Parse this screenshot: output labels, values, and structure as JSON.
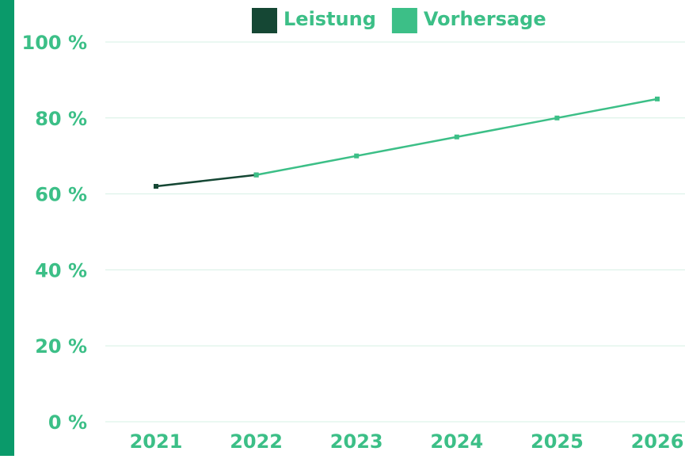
{
  "chart_data": {
    "type": "line",
    "categories": [
      "2021",
      "2022",
      "2023",
      "2024",
      "2025",
      "2026"
    ],
    "series": [
      {
        "name": "Leistung",
        "color": "#154734",
        "values": [
          62,
          65,
          null,
          null,
          null,
          null
        ]
      },
      {
        "name": "Vorhersage",
        "color": "#3cbf87",
        "values": [
          null,
          65,
          70,
          75,
          80,
          85
        ]
      }
    ],
    "ylim": [
      0,
      100
    ],
    "yticks": [
      {
        "value": 0,
        "label": "0 %"
      },
      {
        "value": 20,
        "label": "20 %"
      },
      {
        "value": 40,
        "label": "40 %"
      },
      {
        "value": 60,
        "label": "60 %"
      },
      {
        "value": 80,
        "label": "80 %"
      },
      {
        "value": 100,
        "label": "100 %"
      }
    ],
    "grid": true,
    "legend": "top"
  }
}
